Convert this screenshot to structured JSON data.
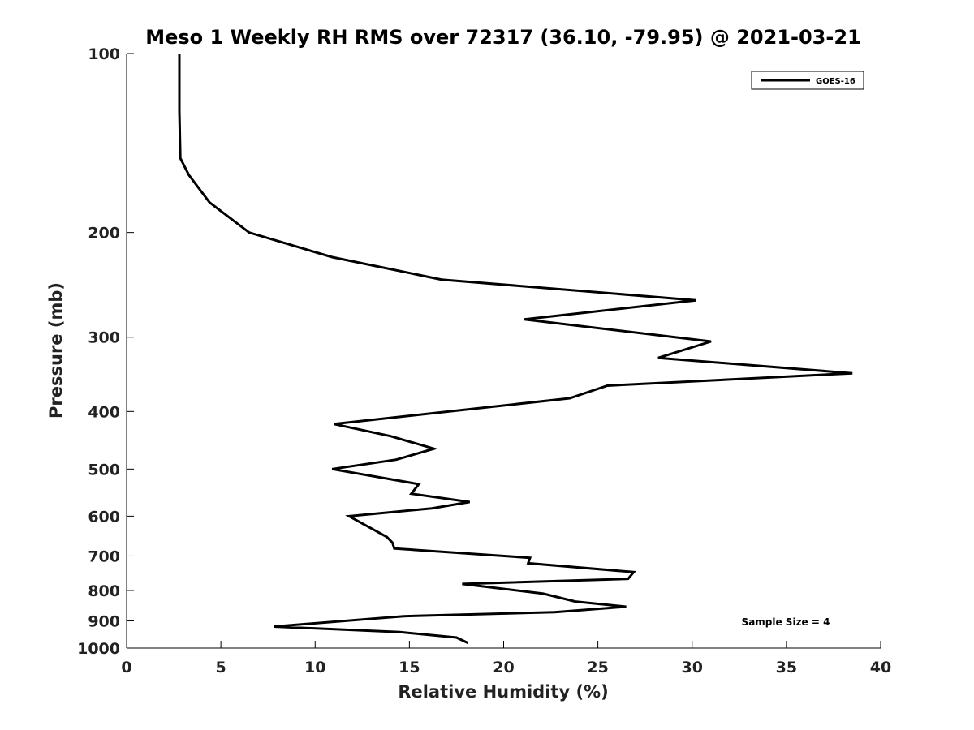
{
  "chart_data": {
    "type": "line",
    "title": "Meso 1 Weekly RH RMS over 72317 (36.10, -79.95) @ 2021-03-21",
    "xlabel": "Relative Humidity (%)",
    "ylabel": "Pressure (mb)",
    "xlim": [
      0,
      40
    ],
    "ylim": [
      100,
      1000
    ],
    "y_scale": "log",
    "y_inverted": true,
    "x_ticks": [
      0,
      5,
      10,
      15,
      20,
      25,
      30,
      35,
      40
    ],
    "y_ticks": [
      100,
      200,
      300,
      400,
      500,
      600,
      700,
      800,
      900,
      1000
    ],
    "grid": false,
    "legend": {
      "placement": "top-right",
      "entries": [
        "GOES-16"
      ]
    },
    "annotation": "Sample Size = 4",
    "series": [
      {
        "name": "GOES-16",
        "color": "#000000",
        "x": [
          2.8,
          2.8,
          2.85,
          2.85,
          3.3,
          4.4,
          6.5,
          10.9,
          16.7,
          30.2,
          21.1,
          31.0,
          28.2,
          38.5,
          25.5,
          23.5,
          11.0,
          14.0,
          16.3,
          14.3,
          10.9,
          15.5,
          15.1,
          18.2,
          16.2,
          11.8,
          13.8,
          14.1,
          14.2,
          21.4,
          21.3,
          26.9,
          26.6,
          17.8,
          22.1,
          23.8,
          26.5,
          22.7,
          14.7,
          7.8,
          14.5,
          17.5,
          18.1
        ],
        "y": [
          100,
          125,
          150,
          150,
          160,
          178,
          200,
          220,
          240,
          260,
          280,
          305,
          325,
          345,
          362,
          380,
          420,
          440,
          462,
          482,
          500,
          530,
          550,
          568,
          582,
          600,
          650,
          665,
          680,
          705,
          720,
          745,
          765,
          780,
          810,
          835,
          852,
          870,
          884,
          920,
          940,
          960,
          980
        ]
      }
    ]
  }
}
